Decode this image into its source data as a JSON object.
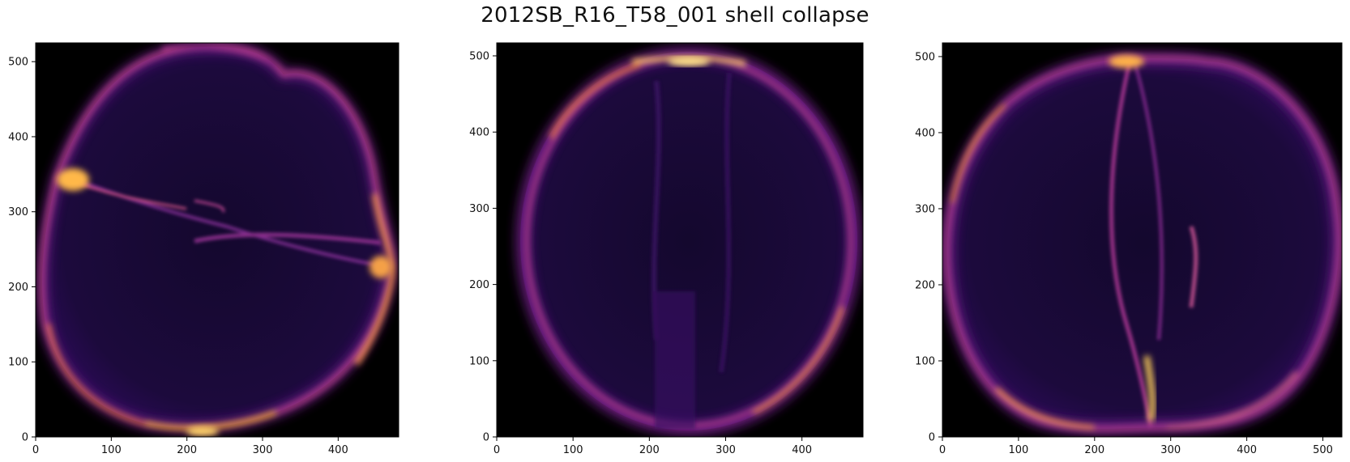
{
  "title": "2012SB_R16_T58_001 shell collapse",
  "colors": {
    "background": "#000000",
    "shell_dim": "#2a0b55",
    "shell_mid": "#8c2a8a",
    "shell_bright": "#f0a030",
    "shell_peak": "#fff3a0"
  },
  "panels": [
    {
      "id": "left",
      "xlim": [
        0,
        480
      ],
      "ylim": [
        0,
        525
      ],
      "xticks": [
        0,
        100,
        200,
        300,
        400
      ],
      "yticks": [
        0,
        100,
        200,
        300,
        400,
        500
      ],
      "xtick_labels": [
        "0",
        "100",
        "200",
        "300",
        "400"
      ],
      "ytick_labels": [
        "0",
        "100",
        "200",
        "300",
        "400",
        "500"
      ]
    },
    {
      "id": "middle",
      "xlim": [
        0,
        480
      ],
      "ylim": [
        0,
        517
      ],
      "xticks": [
        0,
        100,
        200,
        300,
        400
      ],
      "yticks": [
        0,
        100,
        200,
        300,
        400,
        500
      ],
      "xtick_labels": [
        "0",
        "100",
        "200",
        "300",
        "400"
      ],
      "ytick_labels": [
        "0",
        "100",
        "200",
        "300",
        "400",
        "500"
      ]
    },
    {
      "id": "right",
      "xlim": [
        0,
        525
      ],
      "ylim": [
        0,
        518
      ],
      "xticks": [
        0,
        100,
        200,
        300,
        400,
        500
      ],
      "yticks": [
        0,
        100,
        200,
        300,
        400,
        500
      ],
      "xtick_labels": [
        "0",
        "100",
        "200",
        "300",
        "400",
        "500"
      ],
      "ytick_labels": [
        "0",
        "100",
        "200",
        "300",
        "400",
        "500"
      ]
    }
  ]
}
